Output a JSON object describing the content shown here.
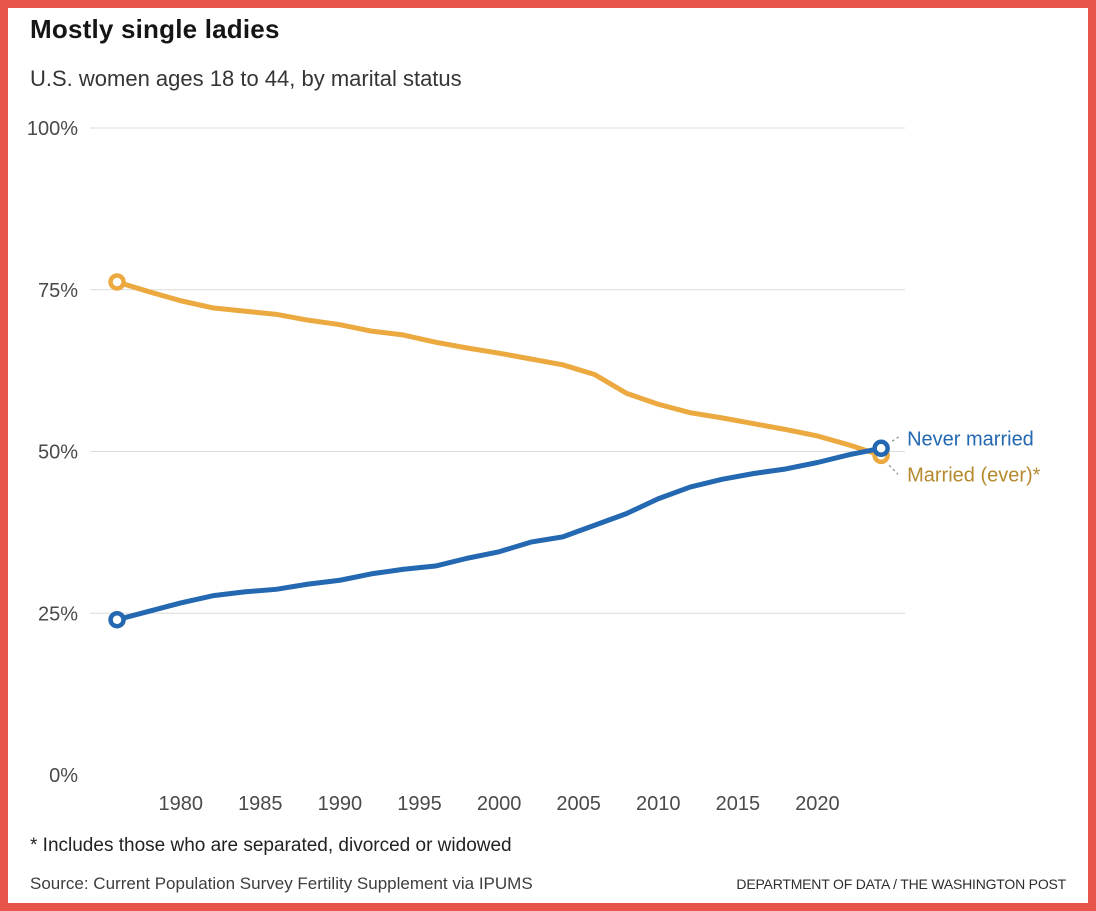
{
  "frame": {
    "border_color": "#E8554A",
    "background": "#FFFFFF"
  },
  "header": {
    "title": "Mostly single ladies",
    "subtitle": "U.S. women ages 18 to 44, by marital status"
  },
  "chart_data": {
    "type": "line",
    "title": "Mostly single ladies",
    "subtitle": "U.S. women ages 18 to 44, by marital status",
    "x": [
      1976,
      1978,
      1980,
      1982,
      1984,
      1986,
      1988,
      1990,
      1992,
      1994,
      1996,
      1998,
      2000,
      2002,
      2004,
      2006,
      2008,
      2010,
      2012,
      2014,
      2016,
      2018,
      2020,
      2022,
      2024
    ],
    "series": [
      {
        "name": "Never married",
        "color": "#2368B0",
        "label_color": "#2368B0",
        "label_side": "above",
        "values": [
          24.0,
          25.3,
          26.6,
          27.7,
          28.3,
          28.7,
          29.5,
          30.1,
          31.1,
          31.8,
          32.3,
          33.5,
          34.5,
          36.0,
          36.8,
          38.6,
          40.4,
          42.7,
          44.5,
          45.7,
          46.6,
          47.3,
          48.3,
          49.5,
          50.5
        ]
      },
      {
        "name": "Married (ever)*",
        "color": "#EBA93F",
        "label_color": "#B58A2E",
        "label_side": "below",
        "values": [
          76.2,
          74.7,
          73.3,
          72.2,
          71.7,
          71.2,
          70.3,
          69.6,
          68.6,
          68.0,
          66.9,
          66.0,
          65.2,
          64.3,
          63.4,
          61.9,
          59.0,
          57.3,
          56.0,
          55.2,
          54.3,
          53.4,
          52.4,
          51.0,
          49.4
        ]
      }
    ],
    "x_ticks": [
      1980,
      1985,
      1990,
      1995,
      2000,
      2005,
      2010,
      2015,
      2020
    ],
    "y_ticks": [
      0,
      25,
      50,
      75,
      100
    ],
    "grid_ticks": [
      25,
      50,
      75,
      100
    ],
    "y_tick_suffix": "%",
    "xlim": [
      1974.3,
      2025.5
    ],
    "ylim": [
      0,
      100
    ],
    "grid": "horizontal",
    "grid_color": "#DCDCDC",
    "axis_label_color": "#4A4A4A",
    "leader_line_color": "#9B9B9B",
    "legend_position": "end-of-line-labels"
  },
  "footer": {
    "footnote": "* Includes those who are separated, divorced or widowed",
    "source": "Source: Current Population Survey Fertility Supplement via IPUMS",
    "credit": "DEPARTMENT OF DATA / THE WASHINGTON POST"
  }
}
